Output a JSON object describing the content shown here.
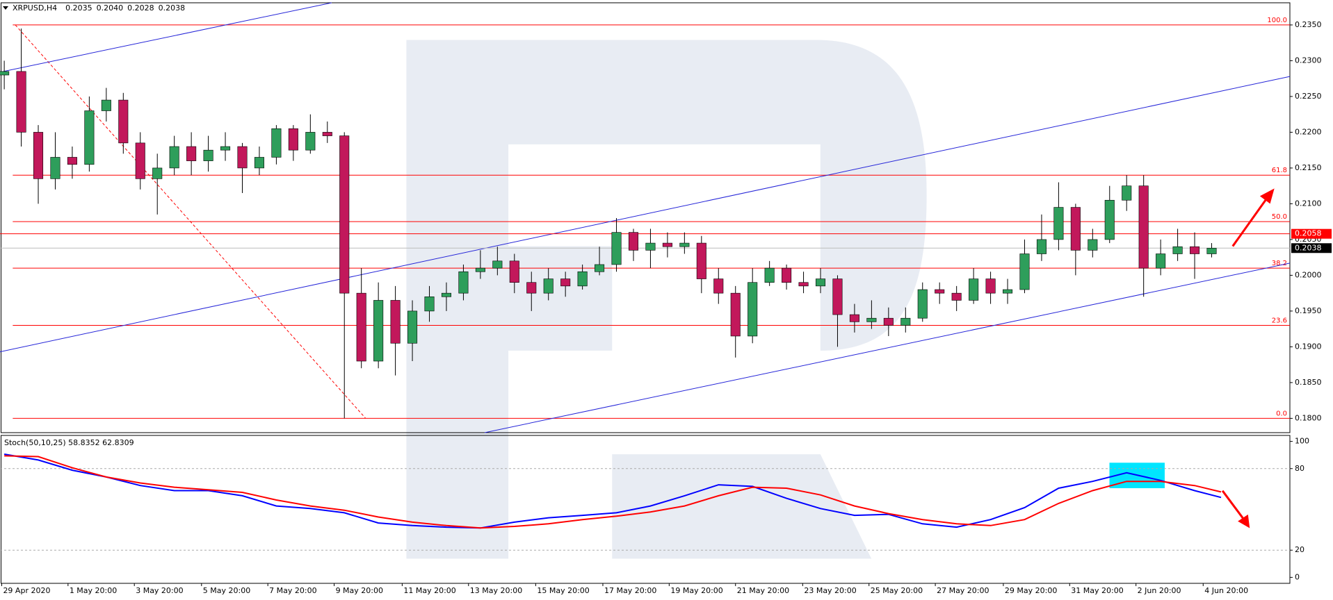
{
  "chart_data": [
    {
      "type": "candlestick",
      "title": "XRPUSD,H4",
      "last_bar": [
        {
          "value": 0.2035,
          "label": "0.2035"
        },
        {
          "value": 0.204,
          "label": "0.2040"
        },
        {
          "value": 0.2028,
          "label": "0.2028"
        },
        {
          "value": 0.2038,
          "label": "0.2038"
        }
      ],
      "x": [
        0,
        1,
        2,
        3,
        4,
        5,
        6,
        7,
        8,
        9,
        10,
        11,
        12,
        13,
        14,
        15,
        16,
        17,
        18,
        19,
        20,
        21,
        22,
        23,
        24,
        25,
        26,
        27,
        28,
        29,
        30,
        31,
        32,
        33,
        34,
        35,
        36,
        37,
        38,
        39,
        40,
        41,
        42,
        43,
        44,
        45,
        46,
        47,
        48,
        49,
        50,
        51,
        52,
        53,
        54,
        55,
        56,
        57,
        58,
        59,
        60,
        61,
        62,
        63,
        64,
        65,
        66,
        67,
        68,
        69,
        70,
        71
      ],
      "open": [
        0.228,
        0.2285,
        0.22,
        0.2135,
        0.2165,
        0.2155,
        0.223,
        0.2245,
        0.2185,
        0.2135,
        0.215,
        0.218,
        0.216,
        0.2175,
        0.218,
        0.215,
        0.2165,
        0.2205,
        0.2175,
        0.22,
        0.2195,
        0.1975,
        0.188,
        0.1965,
        0.1905,
        0.195,
        0.197,
        0.1975,
        0.2005,
        0.201,
        0.202,
        0.199,
        0.1975,
        0.1995,
        0.1985,
        0.2005,
        0.2015,
        0.206,
        0.2035,
        0.2045,
        0.204,
        0.2045,
        0.1995,
        0.1975,
        0.1915,
        0.199,
        0.201,
        0.199,
        0.1985,
        0.1995,
        0.1945,
        0.1935,
        0.194,
        0.193,
        0.194,
        0.198,
        0.1975,
        0.1965,
        0.1995,
        0.1975,
        0.198,
        0.203,
        0.205,
        0.2095,
        0.2035,
        0.205,
        0.2105,
        0.2125,
        0.201,
        0.203,
        0.204,
        0.203
      ],
      "high": [
        0.23,
        0.2345,
        0.221,
        0.22,
        0.218,
        0.225,
        0.2262,
        0.2255,
        0.22,
        0.217,
        0.2195,
        0.22,
        0.2195,
        0.22,
        0.2185,
        0.218,
        0.221,
        0.221,
        0.2225,
        0.2215,
        0.22,
        0.201,
        0.199,
        0.1985,
        0.1965,
        0.1985,
        0.199,
        0.2015,
        0.2035,
        0.204,
        0.203,
        0.2005,
        0.201,
        0.2005,
        0.2015,
        0.204,
        0.208,
        0.2065,
        0.2065,
        0.206,
        0.206,
        0.2055,
        0.201,
        0.1985,
        0.201,
        0.202,
        0.2015,
        0.2005,
        0.201,
        0.2,
        0.196,
        0.1965,
        0.1955,
        0.1955,
        0.199,
        0.199,
        0.1985,
        0.201,
        0.2005,
        0.1995,
        0.205,
        0.2085,
        0.213,
        0.21,
        0.2065,
        0.2125,
        0.214,
        0.214,
        0.205,
        0.2065,
        0.206,
        0.2045
      ],
      "low": [
        0.226,
        0.218,
        0.21,
        0.212,
        0.2135,
        0.2145,
        0.2215,
        0.217,
        0.212,
        0.2085,
        0.214,
        0.214,
        0.2145,
        0.216,
        0.2115,
        0.214,
        0.2155,
        0.216,
        0.217,
        0.2185,
        0.18,
        0.187,
        0.187,
        0.186,
        0.188,
        0.1935,
        0.195,
        0.1965,
        0.1995,
        0.2,
        0.1975,
        0.195,
        0.1965,
        0.197,
        0.198,
        0.2,
        0.2005,
        0.202,
        0.201,
        0.2025,
        0.203,
        0.1975,
        0.196,
        0.1885,
        0.1905,
        0.1985,
        0.198,
        0.1975,
        0.1975,
        0.19,
        0.192,
        0.1925,
        0.1915,
        0.192,
        0.1935,
        0.196,
        0.195,
        0.196,
        0.196,
        0.196,
        0.1975,
        0.202,
        0.2035,
        0.2,
        0.2025,
        0.2045,
        0.209,
        0.197,
        0.2,
        0.202,
        0.1995,
        0.2025
      ],
      "close": [
        0.2285,
        0.22,
        0.2135,
        0.2165,
        0.2155,
        0.223,
        0.2245,
        0.2185,
        0.2135,
        0.215,
        0.218,
        0.216,
        0.2175,
        0.218,
        0.215,
        0.2165,
        0.2205,
        0.2175,
        0.22,
        0.2195,
        0.1975,
        0.188,
        0.1965,
        0.1905,
        0.195,
        0.197,
        0.1975,
        0.2005,
        0.201,
        0.202,
        0.199,
        0.1975,
        0.1995,
        0.1985,
        0.2005,
        0.2015,
        0.206,
        0.2035,
        0.2045,
        0.204,
        0.2045,
        0.1995,
        0.1975,
        0.1915,
        0.199,
        0.201,
        0.199,
        0.1985,
        0.1995,
        0.1945,
        0.1935,
        0.194,
        0.193,
        0.194,
        0.198,
        0.1975,
        0.1965,
        0.1995,
        0.1975,
        0.198,
        0.203,
        0.205,
        0.2095,
        0.2035,
        0.205,
        0.2105,
        0.2125,
        0.201,
        0.203,
        0.204,
        0.203,
        0.2038
      ],
      "up_color": "#2e9e5b",
      "down_color": "#c2185b",
      "wick_color": "#000000",
      "xlim": [
        -0.25,
        75.6
      ],
      "ylim": [
        0.178,
        0.2381
      ],
      "yticks": [
        {
          "value": 0.235,
          "label": "0.2350"
        },
        {
          "value": 0.23,
          "label": "0.2300"
        },
        {
          "value": 0.225,
          "label": "0.2250"
        },
        {
          "value": 0.22,
          "label": "0.2200"
        },
        {
          "value": 0.215,
          "label": "0.2150"
        },
        {
          "value": 0.21,
          "label": "0.2100"
        },
        {
          "value": 0.205,
          "label": "0.2050"
        },
        {
          "value": 0.2,
          "label": "0.2000"
        },
        {
          "value": 0.195,
          "label": "0.1950"
        },
        {
          "value": 0.19,
          "label": "0.1900"
        },
        {
          "value": 0.185,
          "label": "0.1850"
        },
        {
          "value": 0.18,
          "label": "0.1800"
        }
      ],
      "xticks": [
        {
          "value": -0.15,
          "label": "29 Apr 2020"
        },
        {
          "value": 3.75,
          "label": "1 May 20:00"
        },
        {
          "value": 7.65,
          "label": "3 May 20:00"
        },
        {
          "value": 11.6,
          "label": "5 May 20:00"
        },
        {
          "value": 15.5,
          "label": "7 May 20:00"
        },
        {
          "value": 19.4,
          "label": "9 May 20:00"
        },
        {
          "value": 23.4,
          "label": "11 May 20:00"
        },
        {
          "value": 27.3,
          "label": "13 May 20:00"
        },
        {
          "value": 31.25,
          "label": "15 May 20:00"
        },
        {
          "value": 35.2,
          "label": "17 May 20:00"
        },
        {
          "value": 39.1,
          "label": "19 May 20:00"
        },
        {
          "value": 43,
          "label": "21 May 20:00"
        },
        {
          "value": 46.95,
          "label": "23 May 20:00"
        },
        {
          "value": 50.85,
          "label": "25 May 20:00"
        },
        {
          "value": 54.75,
          "label": "27 May 20:00"
        },
        {
          "value": 58.75,
          "label": "29 May 20:00"
        },
        {
          "value": 62.65,
          "label": "31 May 20:00"
        },
        {
          "value": 66.55,
          "label": "2 Jun 20:00"
        },
        {
          "value": 70.5,
          "label": "4 Jun 20:00"
        }
      ],
      "fibonacci": {
        "color": "#ff0000",
        "x_start": 0.5,
        "levels": [
          {
            "value": 0.235,
            "label": "100.0"
          },
          {
            "value": 0.214,
            "label": "61.8"
          },
          {
            "value": 0.2075,
            "label": "50.0"
          },
          {
            "value": 0.201,
            "label": "38.2"
          },
          {
            "value": 0.193,
            "label": "23.6"
          },
          {
            "value": 0.18,
            "label": "0.0"
          }
        ],
        "base": {
          "x": [
            0.65,
            21.25
          ],
          "y": [
            0.235,
            0.18
          ]
        }
      },
      "trendline_color": "#2424d8",
      "trendlines": [
        {
          "x": [
            -0.25,
            19.25
          ],
          "y": [
            0.2284,
            0.2381
          ]
        },
        {
          "x": [
            -0.25,
            75.6
          ],
          "y": [
            0.1893,
            0.2278
          ]
        },
        {
          "x": [
            28.25,
            75.6
          ],
          "y": [
            0.178,
            0.2017
          ]
        }
      ],
      "price_lines": [
        {
          "value": 0.2058,
          "label": "0.2058",
          "color": "#ff0000"
        },
        {
          "value": 0.2038,
          "label": "0.2038",
          "color": "#000000"
        }
      ]
    },
    {
      "type": "line",
      "title": "Stoch(50,10,25) 58.8352 62.8309",
      "x": [
        0,
        2,
        4,
        6,
        8,
        10,
        12,
        14,
        16,
        18,
        20,
        22,
        24,
        26,
        28,
        30,
        32,
        34,
        36,
        38,
        40,
        42,
        44,
        46,
        48,
        50,
        52,
        54,
        56,
        58,
        60,
        62,
        64,
        66,
        68,
        70,
        71.55
      ],
      "series": [
        {
          "color": "#0000ff",
          "values": [
            90.6,
            86.3,
            78.8,
            73.8,
            67.5,
            63.8,
            63.8,
            60.0,
            52.5,
            50.6,
            47.5,
            40.0,
            38.1,
            36.9,
            36.3,
            40.6,
            43.8,
            45.6,
            47.5,
            52.5,
            60.0,
            68.1,
            66.9,
            58.1,
            50.6,
            45.6,
            46.3,
            39.4,
            36.9,
            42.5,
            51.3,
            65.6,
            70.6,
            76.9,
            71.3,
            63.8,
            58.8
          ]
        },
        {
          "color": "#ff0000",
          "values": [
            89.4,
            88.8,
            80.6,
            73.8,
            69.4,
            66.3,
            64.4,
            62.5,
            56.9,
            52.5,
            49.4,
            44.4,
            40.6,
            38.1,
            36.3,
            37.5,
            39.4,
            42.5,
            45.0,
            48.1,
            52.5,
            60.0,
            66.3,
            65.6,
            60.6,
            52.5,
            46.9,
            42.5,
            39.4,
            38.1,
            42.5,
            54.4,
            63.8,
            70.6,
            70.6,
            67.5,
            62.8
          ]
        }
      ],
      "xlim": [
        -0.25,
        75.6
      ],
      "ylim": [
        -4.4,
        104.4
      ],
      "yticks": [
        0,
        20,
        80,
        100
      ],
      "level_lines": [
        20,
        80
      ]
    }
  ]
}
